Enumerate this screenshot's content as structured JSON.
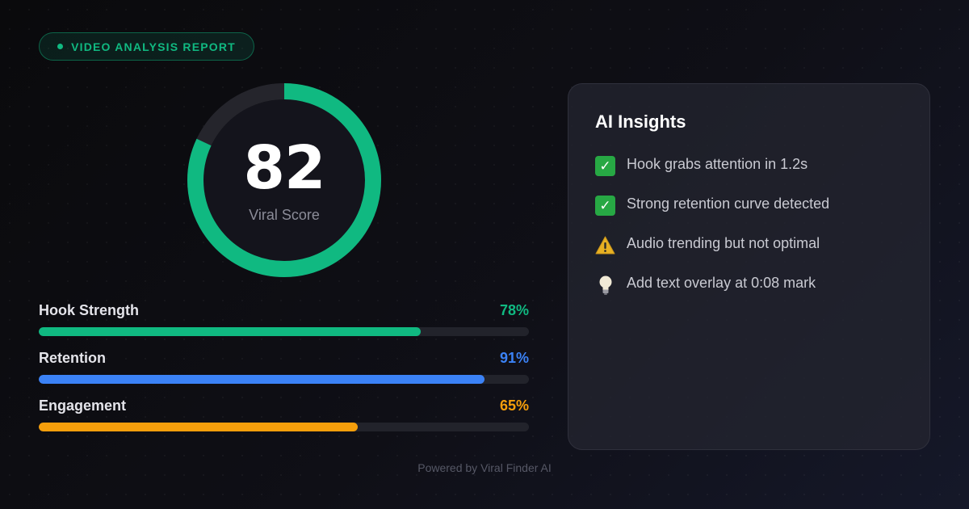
{
  "badge": {
    "label": "VIDEO ANALYSIS REPORT"
  },
  "score": {
    "value": "82",
    "label": "Viral Score",
    "fraction": 0.82
  },
  "metrics": [
    {
      "name": "Hook Strength",
      "value": "78%",
      "fraction": 0.78,
      "color": "#10b981"
    },
    {
      "name": "Retention",
      "value": "91%",
      "fraction": 0.91,
      "color": "#3b82f6"
    },
    {
      "name": "Engagement",
      "value": "65%",
      "fraction": 0.65,
      "color": "#f59e0b"
    }
  ],
  "insights": {
    "title": "AI Insights",
    "items": [
      {
        "icon": "check-mark-icon",
        "text": "Hook grabs attention in 1.2s"
      },
      {
        "icon": "check-mark-icon",
        "text": "Strong retention curve detected"
      },
      {
        "icon": "warning-icon",
        "text": "Audio trending but not optimal"
      },
      {
        "icon": "light-bulb-icon",
        "text": "Add text overlay at 0:08 mark"
      }
    ]
  },
  "footer": {
    "text": "Powered by Viral Finder AI"
  },
  "colors": {
    "accent": "#10b981",
    "track": "#22232b",
    "panel": "#242530"
  }
}
